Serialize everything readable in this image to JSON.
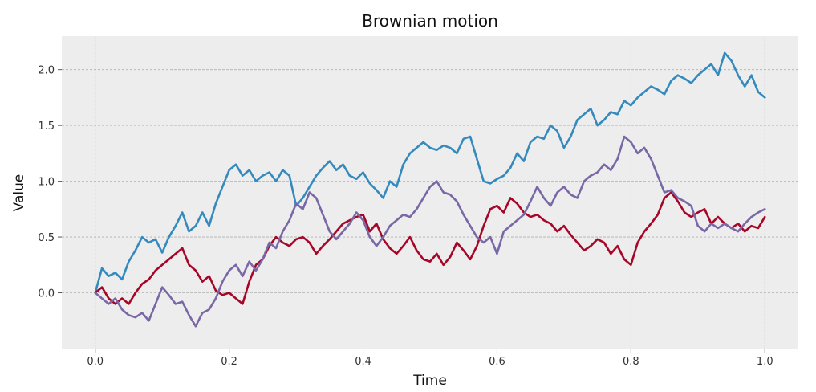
{
  "chart_data": {
    "type": "line",
    "title": "Brownian motion",
    "xlabel": "Time",
    "ylabel": "Value",
    "xlim": [
      -0.05,
      1.05
    ],
    "ylim": [
      -0.5,
      2.3
    ],
    "xticks": [
      0.0,
      0.2,
      0.4,
      0.6,
      0.8,
      1.0
    ],
    "xtick_labels": [
      "0.0",
      "0.2",
      "0.4",
      "0.6",
      "0.8",
      "1.0"
    ],
    "yticks": [
      0.0,
      0.5,
      1.0,
      1.5,
      2.0
    ],
    "ytick_labels": [
      "0.0",
      "0.5",
      "1.0",
      "1.5",
      "2.0"
    ],
    "grid": true,
    "background": "#ededed",
    "series": [
      {
        "color": "#348abd",
        "x": [
          0.0,
          0.01,
          0.02,
          0.03,
          0.04,
          0.05,
          0.06,
          0.07,
          0.08,
          0.09,
          0.1,
          0.11,
          0.12,
          0.13,
          0.14,
          0.15,
          0.16,
          0.17,
          0.18,
          0.19,
          0.2,
          0.21,
          0.22,
          0.23,
          0.24,
          0.25,
          0.26,
          0.27,
          0.28,
          0.29,
          0.3,
          0.31,
          0.32,
          0.33,
          0.34,
          0.35,
          0.36,
          0.37,
          0.38,
          0.39,
          0.4,
          0.41,
          0.42,
          0.43,
          0.44,
          0.45,
          0.46,
          0.47,
          0.48,
          0.49,
          0.5,
          0.51,
          0.52,
          0.53,
          0.54,
          0.55,
          0.56,
          0.57,
          0.58,
          0.59,
          0.6,
          0.61,
          0.62,
          0.63,
          0.64,
          0.65,
          0.66,
          0.67,
          0.68,
          0.69,
          0.7,
          0.71,
          0.72,
          0.73,
          0.74,
          0.75,
          0.76,
          0.77,
          0.78,
          0.79,
          0.8,
          0.81,
          0.82,
          0.83,
          0.84,
          0.85,
          0.86,
          0.87,
          0.88,
          0.89,
          0.9,
          0.91,
          0.92,
          0.93,
          0.94,
          0.95,
          0.96,
          0.97,
          0.98,
          0.99,
          1.0
        ],
        "y": [
          0.0,
          0.22,
          0.15,
          0.18,
          0.12,
          0.28,
          0.38,
          0.5,
          0.45,
          0.48,
          0.36,
          0.5,
          0.6,
          0.72,
          0.55,
          0.6,
          0.72,
          0.6,
          0.8,
          0.95,
          1.1,
          1.15,
          1.05,
          1.1,
          1.0,
          1.05,
          1.08,
          1.0,
          1.1,
          1.05,
          0.78,
          0.85,
          0.95,
          1.05,
          1.12,
          1.18,
          1.1,
          1.15,
          1.05,
          1.02,
          1.08,
          0.98,
          0.92,
          0.85,
          1.0,
          0.95,
          1.15,
          1.25,
          1.3,
          1.35,
          1.3,
          1.28,
          1.32,
          1.3,
          1.25,
          1.38,
          1.4,
          1.2,
          1.0,
          0.98,
          1.02,
          1.05,
          1.12,
          1.25,
          1.18,
          1.35,
          1.4,
          1.38,
          1.5,
          1.45,
          1.3,
          1.4,
          1.55,
          1.6,
          1.65,
          1.5,
          1.55,
          1.62,
          1.6,
          1.72,
          1.68,
          1.75,
          1.8,
          1.85,
          1.82,
          1.78,
          1.9,
          1.95,
          1.92,
          1.88,
          1.95,
          2.0,
          2.05,
          1.95,
          2.15,
          2.08,
          1.95,
          1.85,
          1.95,
          1.8,
          1.75
        ]
      },
      {
        "color": "#a60628",
        "x": [
          0.0,
          0.01,
          0.02,
          0.03,
          0.04,
          0.05,
          0.06,
          0.07,
          0.08,
          0.09,
          0.1,
          0.11,
          0.12,
          0.13,
          0.14,
          0.15,
          0.16,
          0.17,
          0.18,
          0.19,
          0.2,
          0.21,
          0.22,
          0.23,
          0.24,
          0.25,
          0.26,
          0.27,
          0.28,
          0.29,
          0.3,
          0.31,
          0.32,
          0.33,
          0.34,
          0.35,
          0.36,
          0.37,
          0.38,
          0.39,
          0.4,
          0.41,
          0.42,
          0.43,
          0.44,
          0.45,
          0.46,
          0.47,
          0.48,
          0.49,
          0.5,
          0.51,
          0.52,
          0.53,
          0.54,
          0.55,
          0.56,
          0.57,
          0.58,
          0.59,
          0.6,
          0.61,
          0.62,
          0.63,
          0.64,
          0.65,
          0.66,
          0.67,
          0.68,
          0.69,
          0.7,
          0.71,
          0.72,
          0.73,
          0.74,
          0.75,
          0.76,
          0.77,
          0.78,
          0.79,
          0.8,
          0.81,
          0.82,
          0.83,
          0.84,
          0.85,
          0.86,
          0.87,
          0.88,
          0.89,
          0.9,
          0.91,
          0.92,
          0.93,
          0.94,
          0.95,
          0.96,
          0.97,
          0.98,
          0.99,
          1.0
        ],
        "y": [
          0.0,
          0.05,
          -0.05,
          -0.1,
          -0.05,
          -0.1,
          0.0,
          0.08,
          0.12,
          0.2,
          0.25,
          0.3,
          0.35,
          0.4,
          0.25,
          0.2,
          0.1,
          0.15,
          0.02,
          -0.02,
          0.0,
          -0.05,
          -0.1,
          0.1,
          0.25,
          0.3,
          0.42,
          0.5,
          0.45,
          0.42,
          0.48,
          0.5,
          0.45,
          0.35,
          0.42,
          0.48,
          0.55,
          0.62,
          0.65,
          0.68,
          0.7,
          0.55,
          0.62,
          0.48,
          0.4,
          0.35,
          0.42,
          0.5,
          0.38,
          0.3,
          0.28,
          0.35,
          0.25,
          0.32,
          0.45,
          0.38,
          0.3,
          0.42,
          0.6,
          0.75,
          0.78,
          0.72,
          0.85,
          0.8,
          0.72,
          0.68,
          0.7,
          0.65,
          0.62,
          0.55,
          0.6,
          0.52,
          0.45,
          0.38,
          0.42,
          0.48,
          0.45,
          0.35,
          0.42,
          0.3,
          0.25,
          0.45,
          0.55,
          0.62,
          0.7,
          0.85,
          0.9,
          0.82,
          0.72,
          0.68,
          0.72,
          0.75,
          0.62,
          0.68,
          0.62,
          0.58,
          0.62,
          0.55,
          0.6,
          0.58,
          0.68
        ]
      },
      {
        "color": "#7a68a6",
        "x": [
          0.0,
          0.01,
          0.02,
          0.03,
          0.04,
          0.05,
          0.06,
          0.07,
          0.08,
          0.09,
          0.1,
          0.11,
          0.12,
          0.13,
          0.14,
          0.15,
          0.16,
          0.17,
          0.18,
          0.19,
          0.2,
          0.21,
          0.22,
          0.23,
          0.24,
          0.25,
          0.26,
          0.27,
          0.28,
          0.29,
          0.3,
          0.31,
          0.32,
          0.33,
          0.34,
          0.35,
          0.36,
          0.37,
          0.38,
          0.39,
          0.4,
          0.41,
          0.42,
          0.43,
          0.44,
          0.45,
          0.46,
          0.47,
          0.48,
          0.49,
          0.5,
          0.51,
          0.52,
          0.53,
          0.54,
          0.55,
          0.56,
          0.57,
          0.58,
          0.59,
          0.6,
          0.61,
          0.62,
          0.63,
          0.64,
          0.65,
          0.66,
          0.67,
          0.68,
          0.69,
          0.7,
          0.71,
          0.72,
          0.73,
          0.74,
          0.75,
          0.76,
          0.77,
          0.78,
          0.79,
          0.8,
          0.81,
          0.82,
          0.83,
          0.84,
          0.85,
          0.86,
          0.87,
          0.88,
          0.89,
          0.9,
          0.91,
          0.92,
          0.93,
          0.94,
          0.95,
          0.96,
          0.97,
          0.98,
          0.99,
          1.0
        ],
        "y": [
          0.0,
          -0.05,
          -0.1,
          -0.05,
          -0.15,
          -0.2,
          -0.22,
          -0.18,
          -0.25,
          -0.1,
          0.05,
          -0.02,
          -0.1,
          -0.08,
          -0.2,
          -0.3,
          -0.18,
          -0.15,
          -0.05,
          0.1,
          0.2,
          0.25,
          0.15,
          0.28,
          0.2,
          0.3,
          0.45,
          0.4,
          0.55,
          0.65,
          0.8,
          0.75,
          0.9,
          0.85,
          0.7,
          0.55,
          0.48,
          0.55,
          0.62,
          0.72,
          0.65,
          0.5,
          0.42,
          0.5,
          0.6,
          0.65,
          0.7,
          0.68,
          0.75,
          0.85,
          0.95,
          1.0,
          0.9,
          0.88,
          0.82,
          0.7,
          0.6,
          0.5,
          0.45,
          0.5,
          0.35,
          0.55,
          0.6,
          0.65,
          0.7,
          0.82,
          0.95,
          0.85,
          0.78,
          0.9,
          0.95,
          0.88,
          0.85,
          1.0,
          1.05,
          1.08,
          1.15,
          1.1,
          1.2,
          1.4,
          1.35,
          1.25,
          1.3,
          1.2,
          1.05,
          0.9,
          0.92,
          0.85,
          0.82,
          0.78,
          0.6,
          0.55,
          0.62,
          0.58,
          0.62,
          0.58,
          0.55,
          0.62,
          0.68,
          0.72,
          0.75
        ]
      }
    ]
  }
}
